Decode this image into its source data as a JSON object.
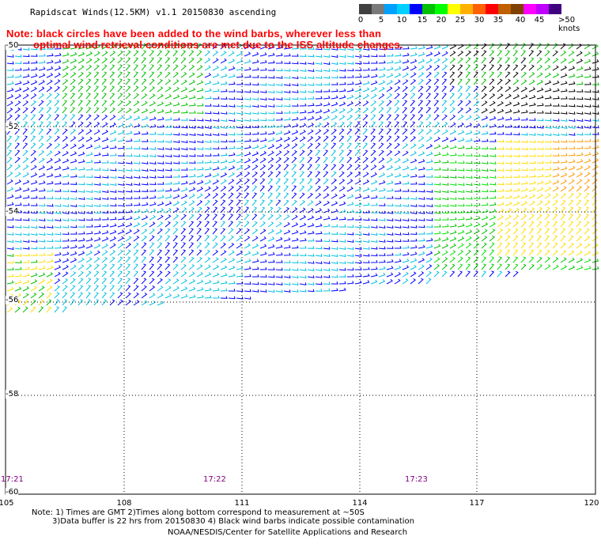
{
  "title": "Rapidscat Winds(12.5KM) v1.1 20150830 ascending",
  "note_line1": "Note: black circles have been added to the wind barbs, wherever less than",
  "note_line2": "optimal wind retrieval conditions are met due to the ISS altitude changes.",
  "legend": {
    "colors": [
      "#404040",
      "#7a7a7a",
      "#00a0ff",
      "#00d0ff",
      "#00e0e0",
      "#0000ff",
      "#00c0c0",
      "#00c000",
      "#00ff00",
      "#ffff00",
      "#ffe000",
      "#ffa000",
      "#ff6000",
      "#ff0000",
      "#e00000",
      "#c06000",
      "#804000",
      "#ff00ff",
      "#c000ff",
      "#800080",
      "#400080"
    ],
    "labels": [
      "0",
      "5",
      "10",
      "15",
      "20",
      "25",
      "30",
      "35",
      "40",
      "45",
      ">50 knots"
    ]
  },
  "lat_labels": [
    "-50",
    "-52",
    "-54",
    "-56",
    "-58",
    "-60"
  ],
  "lon_labels": [
    "105",
    "108",
    "111",
    "114",
    "117",
    "120"
  ],
  "times": [
    "17:21",
    "17:22",
    "17:23"
  ],
  "footer": {
    "line1": "Note: 1) Times are GMT 2)Times along bottom correspond to measurement at ~50S",
    "line2": "3)Data buffer is 22 hrs from 20150830 4) Black wind barbs indicate possible contamination",
    "line3": "NOAA/NESDIS/Center for Satellite Applications and Research"
  },
  "map_data": {
    "lon_range": [
      105,
      120
    ],
    "lat_range": [
      -60,
      -50
    ],
    "grid": true,
    "speed_classes": [
      {
        "knots": "0-5",
        "color": "#404040"
      },
      {
        "knots": "10-15",
        "color": "#0000ff"
      },
      {
        "knots": "15-20",
        "color": "#00c0e0"
      },
      {
        "knots": "20-25",
        "color": "#00c000"
      },
      {
        "knots": "25-30",
        "color": "#ffdd00"
      },
      {
        "knots": "30-35",
        "color": "#ff9900"
      }
    ]
  }
}
